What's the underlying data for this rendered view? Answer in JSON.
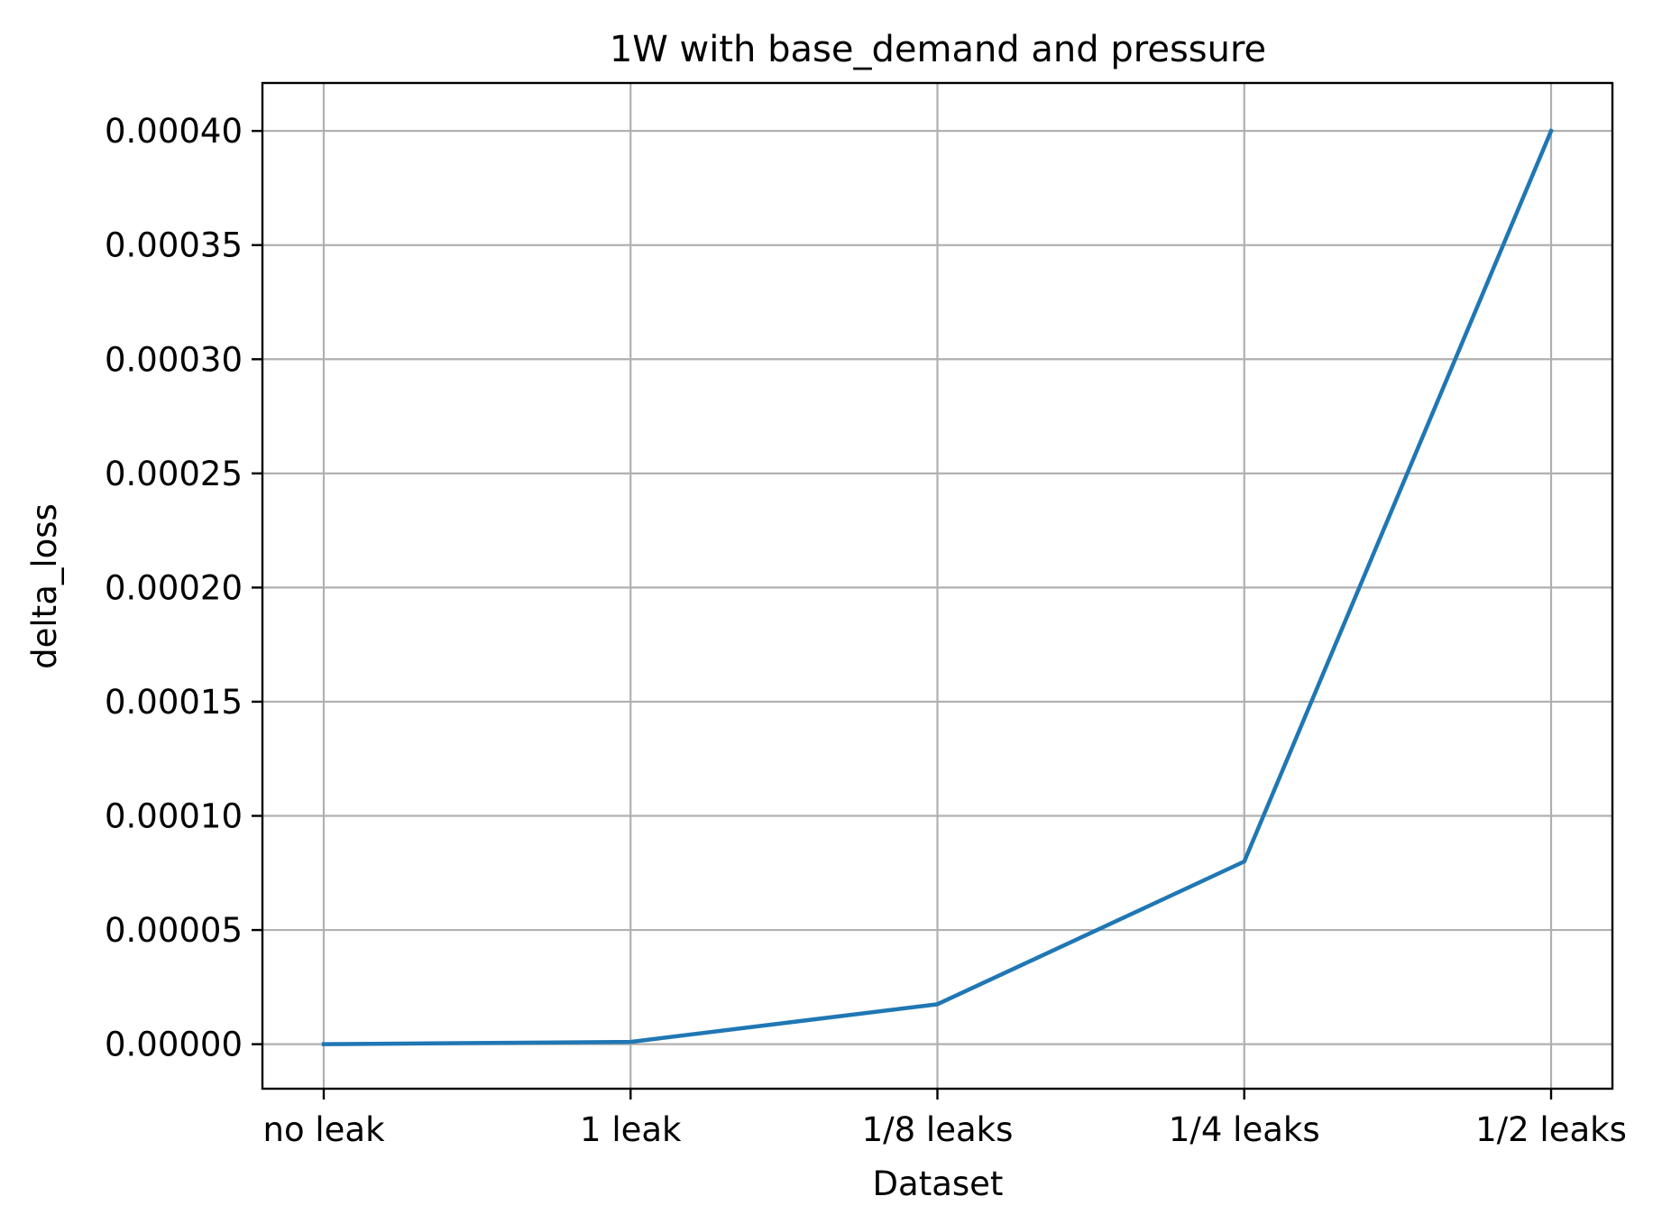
{
  "colors": {
    "series": "#1f77b4",
    "grid": "#b0b0b0",
    "axis": "#000000"
  },
  "chart_data": {
    "type": "line",
    "title": "1W with base_demand and pressure",
    "xlabel": "Dataset",
    "ylabel": "delta_loss",
    "categories": [
      "no leak",
      "1 leak",
      "1/8 leaks",
      "1/4 leaks",
      "1/2 leaks"
    ],
    "series": [
      {
        "values": [
          0.0,
          1e-06,
          1.75e-05,
          8e-05,
          0.0004
        ]
      }
    ],
    "ylim": [
      -1.95e-05,
      0.000421
    ],
    "yticks": [
      0.0,
      5e-05,
      0.0001,
      0.00015,
      0.0002,
      0.00025,
      0.0003,
      0.00035,
      0.0004
    ],
    "ytick_labels": [
      "0.00000",
      "0.00005",
      "0.00010",
      "0.00015",
      "0.00020",
      "0.00025",
      "0.00030",
      "0.00035",
      "0.00040"
    ],
    "grid": true,
    "legend": "none"
  }
}
